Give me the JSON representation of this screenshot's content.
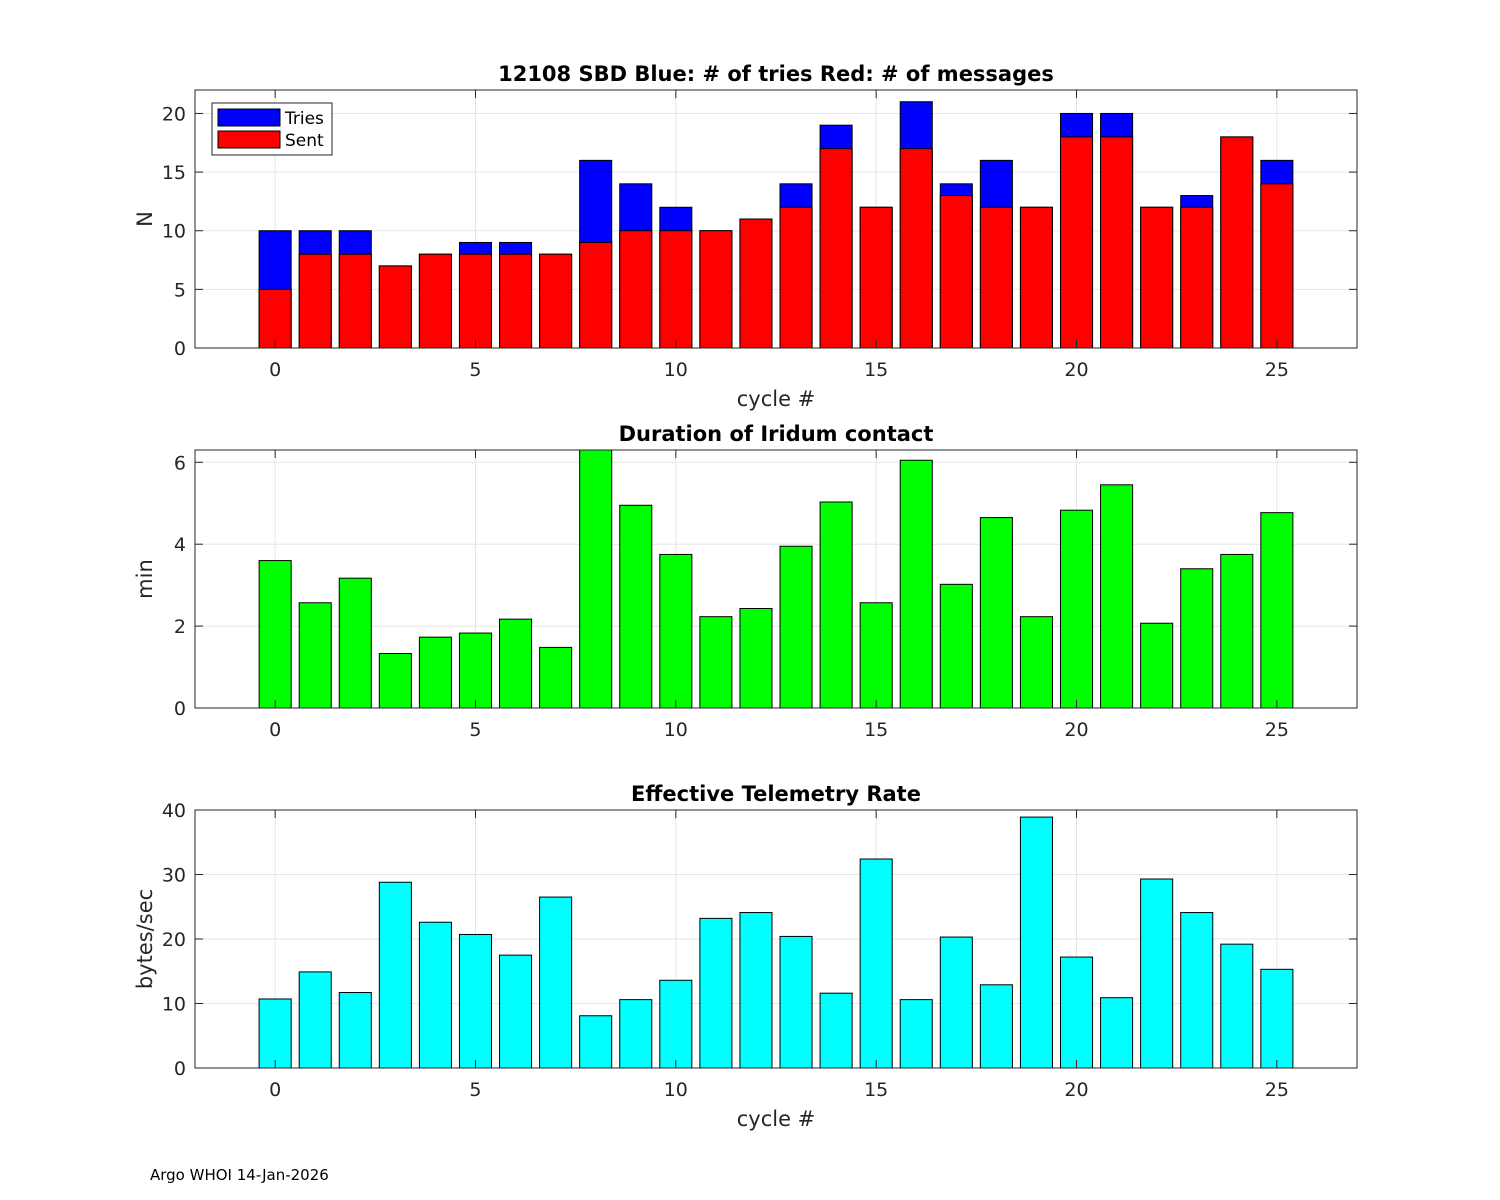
{
  "footer": "Argo WHOI 14-Jan-2026",
  "chart_data": [
    {
      "type": "bar",
      "stacked": "overlay",
      "title": "12108 SBD  Blue: # of tries   Red: # of messages",
      "xlabel": "cycle #",
      "ylabel": "N",
      "xlim": [
        -2,
        27
      ],
      "ylim": [
        0,
        22
      ],
      "xticks": [
        0,
        5,
        10,
        15,
        20,
        25
      ],
      "yticks": [
        0,
        5,
        10,
        15,
        20
      ],
      "grid": true,
      "legend_position": "top-left",
      "x": [
        0,
        1,
        2,
        3,
        4,
        5,
        6,
        7,
        8,
        9,
        10,
        11,
        12,
        13,
        14,
        15,
        16,
        17,
        18,
        19,
        20,
        21,
        22,
        23,
        24,
        25
      ],
      "series": [
        {
          "name": "Tries",
          "color": "#0000ff",
          "values": [
            10,
            10,
            10,
            7,
            8,
            9,
            9,
            8,
            16,
            14,
            12,
            10,
            11,
            14,
            19,
            12,
            21,
            14,
            16,
            12,
            20,
            20,
            12,
            13,
            18,
            16
          ]
        },
        {
          "name": "Sent",
          "color": "#ff0000",
          "values": [
            5,
            8,
            8,
            7,
            8,
            8,
            8,
            8,
            9,
            10,
            10,
            10,
            11,
            12,
            17,
            12,
            17,
            13,
            12,
            12,
            18,
            18,
            12,
            12,
            18,
            14
          ]
        }
      ]
    },
    {
      "type": "bar",
      "title": "Duration of Iridum contact",
      "xlabel": "",
      "ylabel": "min",
      "xlim": [
        -2,
        27
      ],
      "ylim": [
        0,
        6.3
      ],
      "xticks": [
        0,
        5,
        10,
        15,
        20,
        25
      ],
      "yticks": [
        0,
        2,
        4,
        6
      ],
      "grid": true,
      "x": [
        -1,
        0,
        1,
        2,
        3,
        4,
        5,
        6,
        7,
        8,
        9,
        10,
        11,
        12,
        13,
        14,
        15,
        16,
        17,
        18,
        19,
        20,
        21,
        22,
        23,
        24,
        25
      ],
      "series": [
        {
          "name": "Duration",
          "color": "#00ff00",
          "values": [
            0,
            3.6,
            2.57,
            3.17,
            1.33,
            1.73,
            1.83,
            2.17,
            1.48,
            6.3,
            4.95,
            3.75,
            2.23,
            2.43,
            3.95,
            5.03,
            2.57,
            6.05,
            3.02,
            4.65,
            2.23,
            4.83,
            5.45,
            2.07,
            3.4,
            3.75,
            4.77
          ]
        }
      ]
    },
    {
      "type": "bar",
      "title": "Effective Telemetry Rate",
      "xlabel": "cycle #",
      "ylabel": "bytes/sec",
      "xlim": [
        -2,
        27
      ],
      "ylim": [
        0,
        40
      ],
      "xticks": [
        0,
        5,
        10,
        15,
        20,
        25
      ],
      "yticks": [
        0,
        10,
        20,
        30,
        40
      ],
      "grid": true,
      "x": [
        0,
        1,
        2,
        3,
        4,
        5,
        6,
        7,
        8,
        9,
        10,
        11,
        12,
        13,
        14,
        15,
        16,
        17,
        18,
        19,
        20,
        21,
        22,
        23,
        24,
        25
      ],
      "series": [
        {
          "name": "Rate",
          "color": "#00ffff",
          "values": [
            10.7,
            14.9,
            11.7,
            28.8,
            22.6,
            20.7,
            17.5,
            26.5,
            8.1,
            10.6,
            13.6,
            23.2,
            24.1,
            20.4,
            11.6,
            32.4,
            10.6,
            20.3,
            12.9,
            38.9,
            17.2,
            10.9,
            29.3,
            24.1,
            19.2,
            15.3
          ]
        }
      ]
    }
  ]
}
